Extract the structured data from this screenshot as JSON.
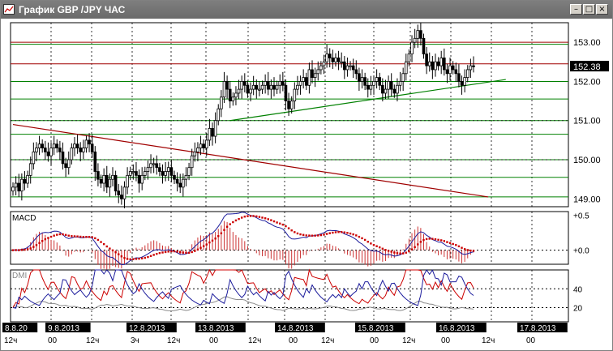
{
  "window": {
    "title": "График GBP /JPY ЧАС",
    "buttons": [
      "minimize",
      "maximize",
      "close"
    ]
  },
  "colors": {
    "background": "#ffffff",
    "grid": "#000000",
    "support_resistance": "#a00000",
    "fibo_levels": "#008000",
    "candle_body": "#000000",
    "macd_line": "#1c1c9c",
    "macd_signal": "#cc0000",
    "macd_histogram": "#cc3333",
    "dmi_adx": "#888888",
    "dmi_plus": "#cc0000",
    "dmi_minus": "#1c1c9c",
    "price_tag_bg": "#000000"
  },
  "main_panel": {
    "current_price_label": "152.38",
    "y_tick_labels": [
      "153.00",
      "152.00",
      "151.00",
      "150.00",
      "149.00"
    ]
  },
  "macd_panel": {
    "label": "MACD",
    "y_tick_labels": [
      "+0.5",
      "+0.0"
    ]
  },
  "dmi_panel": {
    "label": "DMI",
    "y_tick_labels": [
      "40",
      "20"
    ]
  },
  "date_labels": [
    "8.8.20",
    "9.8.2013",
    "12.8.2013",
    "13.8.2013",
    "14.8.2013",
    "15.8.2013",
    "16.8.2013",
    "17.8.2013"
  ],
  "hour_labels": [
    "12ч",
    "00",
    "12ч",
    "3ч",
    "12ч",
    "00",
    "12ч",
    "00",
    "12ч",
    "00",
    "12ч",
    "00",
    "12ч",
    "00"
  ],
  "chart_data": {
    "type": "candlestick",
    "title": "График GBP /JPY ЧАС",
    "ylim": [
      148.8,
      153.5
    ],
    "grid": true,
    "horizontal_levels": {
      "resistance": [
        153.0,
        152.45
      ],
      "support_resistance": [
        151.0,
        150.0
      ],
      "fibo": [
        152.95,
        152.0,
        151.55,
        151.0,
        150.65,
        150.0,
        149.55,
        149.05
      ]
    },
    "trendlines": [
      {
        "color": "red",
        "from": [
          0,
          150.9
        ],
        "to": [
          162,
          149.05
        ]
      },
      {
        "color": "green",
        "from": [
          74,
          151.0
        ],
        "to": [
          168,
          152.05
        ]
      }
    ],
    "close_series": [
      149.3,
      149.4,
      149.2,
      149.5,
      149.4,
      149.6,
      149.9,
      150.2,
      150.3,
      150.4,
      150.3,
      150.2,
      150.1,
      150.3,
      150.4,
      150.3,
      150.2,
      149.9,
      149.8,
      150.0,
      150.3,
      150.4,
      150.3,
      150.2,
      150.3,
      150.5,
      150.4,
      150.2,
      149.7,
      149.5,
      149.4,
      149.6,
      149.3,
      149.5,
      149.6,
      149.2,
      149.1,
      149.0,
      149.3,
      149.6,
      149.7,
      149.7,
      149.6,
      149.4,
      149.6,
      149.7,
      149.8,
      149.9,
      149.9,
      149.8,
      149.7,
      149.6,
      149.7,
      149.8,
      149.6,
      149.5,
      149.4,
      149.3,
      149.5,
      149.6,
      149.8,
      150.1,
      150.2,
      150.3,
      150.4,
      150.3,
      150.5,
      150.8,
      150.6,
      151.0,
      151.3,
      151.6,
      152.0,
      151.8,
      151.5,
      151.6,
      151.7,
      151.8,
      152.0,
      151.9,
      151.7,
      151.8,
      151.9,
      151.8,
      151.8,
      151.9,
      152.0,
      151.8,
      151.9,
      151.8,
      151.9,
      152.0,
      151.9,
      151.5,
      151.3,
      151.5,
      151.8,
      151.9,
      152.0,
      152.1,
      151.9,
      152.3,
      152.1,
      152.2,
      152.3,
      152.4,
      152.5,
      152.7,
      152.6,
      152.5,
      152.6,
      152.5,
      152.5,
      152.3,
      152.4,
      152.4,
      152.3,
      152.2,
      152.0,
      152.1,
      151.9,
      151.8,
      151.9,
      152.0,
      152.1,
      151.9,
      151.7,
      151.8,
      152.0,
      151.8,
      151.7,
      151.9,
      152.0,
      152.2,
      152.5,
      152.7,
      153.0,
      153.1,
      153.3,
      153.1,
      152.7,
      152.4,
      152.5,
      152.3,
      152.5,
      152.4,
      152.6,
      152.3,
      152.2,
      152.4,
      152.3,
      152.2,
      152.0,
      151.9,
      152.1,
      152.3,
      152.4,
      152.38
    ],
    "macd": {
      "ylim": [
        -0.2,
        0.55
      ],
      "ticks": [
        0.5,
        0.0
      ]
    },
    "dmi": {
      "ylim": [
        5,
        60
      ],
      "ticks": [
        40,
        20
      ]
    }
  }
}
